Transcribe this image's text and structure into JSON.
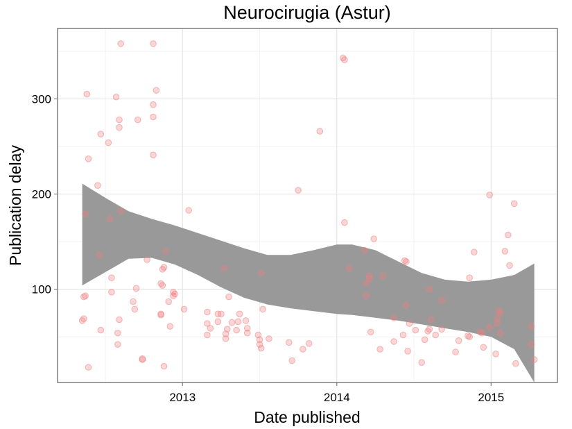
{
  "chart_data": {
    "type": "scatter",
    "title": "Neurocirugia (Astur)",
    "xlabel": "Date published",
    "ylabel": "Publication delay",
    "x_ticks": [
      {
        "value": 2013,
        "label": "2013"
      },
      {
        "value": 2014,
        "label": "2014"
      },
      {
        "value": 2015,
        "label": "2015"
      }
    ],
    "y_ticks": [
      {
        "value": 100,
        "label": "100"
      },
      {
        "value": 200,
        "label": "200"
      },
      {
        "value": 300,
        "label": "300"
      }
    ],
    "xlim": [
      2012.19,
      2015.43
    ],
    "ylim": [
      2,
      374
    ],
    "grid": true,
    "point_color": "#f08080",
    "smooth_band_color": "#999999",
    "points": [
      [
        2012.35,
        67
      ],
      [
        2012.36,
        69
      ],
      [
        2012.36,
        92
      ],
      [
        2012.37,
        93
      ],
      [
        2012.37,
        179
      ],
      [
        2012.38,
        305
      ],
      [
        2012.39,
        18
      ],
      [
        2012.39,
        237
      ],
      [
        2012.45,
        209
      ],
      [
        2012.46,
        136
      ],
      [
        2012.47,
        263
      ],
      [
        2012.47,
        57
      ],
      [
        2012.52,
        254
      ],
      [
        2012.53,
        174
      ],
      [
        2012.54,
        112
      ],
      [
        2012.54,
        97
      ],
      [
        2012.57,
        302
      ],
      [
        2012.58,
        42
      ],
      [
        2012.58,
        54
      ],
      [
        2012.59,
        68
      ],
      [
        2012.59,
        278
      ],
      [
        2012.59,
        270
      ],
      [
        2012.6,
        182
      ],
      [
        2012.6,
        358
      ],
      [
        2012.68,
        87
      ],
      [
        2012.69,
        79
      ],
      [
        2012.7,
        101
      ],
      [
        2012.71,
        278
      ],
      [
        2012.74,
        26
      ],
      [
        2012.74,
        27
      ],
      [
        2012.77,
        131
      ],
      [
        2012.81,
        358
      ],
      [
        2012.81,
        294
      ],
      [
        2012.81,
        281
      ],
      [
        2012.81,
        241
      ],
      [
        2012.83,
        309
      ],
      [
        2012.86,
        74
      ],
      [
        2012.86,
        73
      ],
      [
        2012.86,
        106
      ],
      [
        2012.87,
        104
      ],
      [
        2012.87,
        121
      ],
      [
        2012.88,
        123
      ],
      [
        2012.88,
        19
      ],
      [
        2012.89,
        140
      ],
      [
        2012.91,
        87
      ],
      [
        2012.92,
        61
      ],
      [
        2012.94,
        97
      ],
      [
        2012.94,
        93
      ],
      [
        2012.95,
        95
      ],
      [
        2013.01,
        79
      ],
      [
        2013.04,
        183
      ],
      [
        2013.16,
        76
      ],
      [
        2013.16,
        64
      ],
      [
        2013.16,
        52
      ],
      [
        2013.18,
        59
      ],
      [
        2013.23,
        66
      ],
      [
        2013.23,
        74
      ],
      [
        2013.25,
        74
      ],
      [
        2013.27,
        122
      ],
      [
        2013.28,
        53
      ],
      [
        2013.28,
        48
      ],
      [
        2013.29,
        58
      ],
      [
        2013.3,
        92
      ],
      [
        2013.32,
        65
      ],
      [
        2013.35,
        57
      ],
      [
        2013.36,
        66
      ],
      [
        2013.37,
        74
      ],
      [
        2013.41,
        67
      ],
      [
        2013.42,
        59
      ],
      [
        2013.42,
        54
      ],
      [
        2013.49,
        52
      ],
      [
        2013.5,
        47
      ],
      [
        2013.5,
        42
      ],
      [
        2013.51,
        38
      ],
      [
        2013.51,
        117
      ],
      [
        2013.52,
        79
      ],
      [
        2013.56,
        48
      ],
      [
        2013.69,
        44
      ],
      [
        2013.71,
        25
      ],
      [
        2013.75,
        204
      ],
      [
        2013.78,
        37
      ],
      [
        2013.82,
        43
      ],
      [
        2013.89,
        266
      ],
      [
        2014.04,
        343
      ],
      [
        2014.05,
        341
      ],
      [
        2014.05,
        170
      ],
      [
        2014.08,
        122
      ],
      [
        2014.18,
        141
      ],
      [
        2014.19,
        106
      ],
      [
        2014.19,
        93
      ],
      [
        2014.21,
        114
      ],
      [
        2014.21,
        111
      ],
      [
        2014.22,
        55
      ],
      [
        2014.24,
        153
      ],
      [
        2014.28,
        37
      ],
      [
        2014.3,
        114
      ],
      [
        2014.37,
        70
      ],
      [
        2014.37,
        45
      ],
      [
        2014.43,
        52
      ],
      [
        2014.44,
        130
      ],
      [
        2014.45,
        129
      ],
      [
        2014.45,
        83
      ],
      [
        2014.46,
        35
      ],
      [
        2014.47,
        64
      ],
      [
        2014.51,
        57
      ],
      [
        2014.55,
        23
      ],
      [
        2014.57,
        47
      ],
      [
        2014.59,
        56
      ],
      [
        2014.6,
        58
      ],
      [
        2014.6,
        100
      ],
      [
        2014.61,
        68
      ],
      [
        2014.64,
        52
      ],
      [
        2014.68,
        88
      ],
      [
        2014.68,
        58
      ],
      [
        2014.77,
        34
      ],
      [
        2014.79,
        46
      ],
      [
        2014.85,
        51
      ],
      [
        2014.86,
        50
      ],
      [
        2014.86,
        112
      ],
      [
        2014.89,
        139
      ],
      [
        2014.93,
        55
      ],
      [
        2014.94,
        54
      ],
      [
        2014.95,
        39
      ],
      [
        2014.99,
        199
      ],
      [
        2014.99,
        60
      ],
      [
        2015.03,
        32
      ],
      [
        2015.04,
        69
      ],
      [
        2015.04,
        64
      ],
      [
        2015.05,
        77
      ],
      [
        2015.06,
        75
      ],
      [
        2015.06,
        54
      ],
      [
        2015.09,
        140
      ],
      [
        2015.11,
        157
      ],
      [
        2015.12,
        125
      ],
      [
        2015.15,
        190
      ],
      [
        2015.16,
        22
      ],
      [
        2015.26,
        42
      ],
      [
        2015.26,
        61
      ],
      [
        2015.28,
        26
      ]
    ],
    "smooth_band": [
      {
        "x": 2012.35,
        "lower": 104,
        "upper": 211
      },
      {
        "x": 2012.5,
        "lower": 118,
        "upper": 196
      },
      {
        "x": 2012.65,
        "lower": 132,
        "upper": 182
      },
      {
        "x": 2012.8,
        "lower": 133,
        "upper": 174
      },
      {
        "x": 2012.95,
        "lower": 126,
        "upper": 167
      },
      {
        "x": 2013.1,
        "lower": 115,
        "upper": 159
      },
      {
        "x": 2013.25,
        "lower": 102,
        "upper": 151
      },
      {
        "x": 2013.4,
        "lower": 91,
        "upper": 143
      },
      {
        "x": 2013.55,
        "lower": 84,
        "upper": 136
      },
      {
        "x": 2013.7,
        "lower": 80,
        "upper": 136
      },
      {
        "x": 2013.85,
        "lower": 77,
        "upper": 141
      },
      {
        "x": 2014.0,
        "lower": 74,
        "upper": 147
      },
      {
        "x": 2014.1,
        "lower": 73,
        "upper": 147
      },
      {
        "x": 2014.25,
        "lower": 70,
        "upper": 141
      },
      {
        "x": 2014.4,
        "lower": 67,
        "upper": 129
      },
      {
        "x": 2014.55,
        "lower": 63,
        "upper": 117
      },
      {
        "x": 2014.7,
        "lower": 59,
        "upper": 110
      },
      {
        "x": 2014.85,
        "lower": 55,
        "upper": 108
      },
      {
        "x": 2015.0,
        "lower": 50,
        "upper": 110
      },
      {
        "x": 2015.15,
        "lower": 37,
        "upper": 115
      },
      {
        "x": 2015.28,
        "lower": 2,
        "upper": 127
      }
    ]
  }
}
